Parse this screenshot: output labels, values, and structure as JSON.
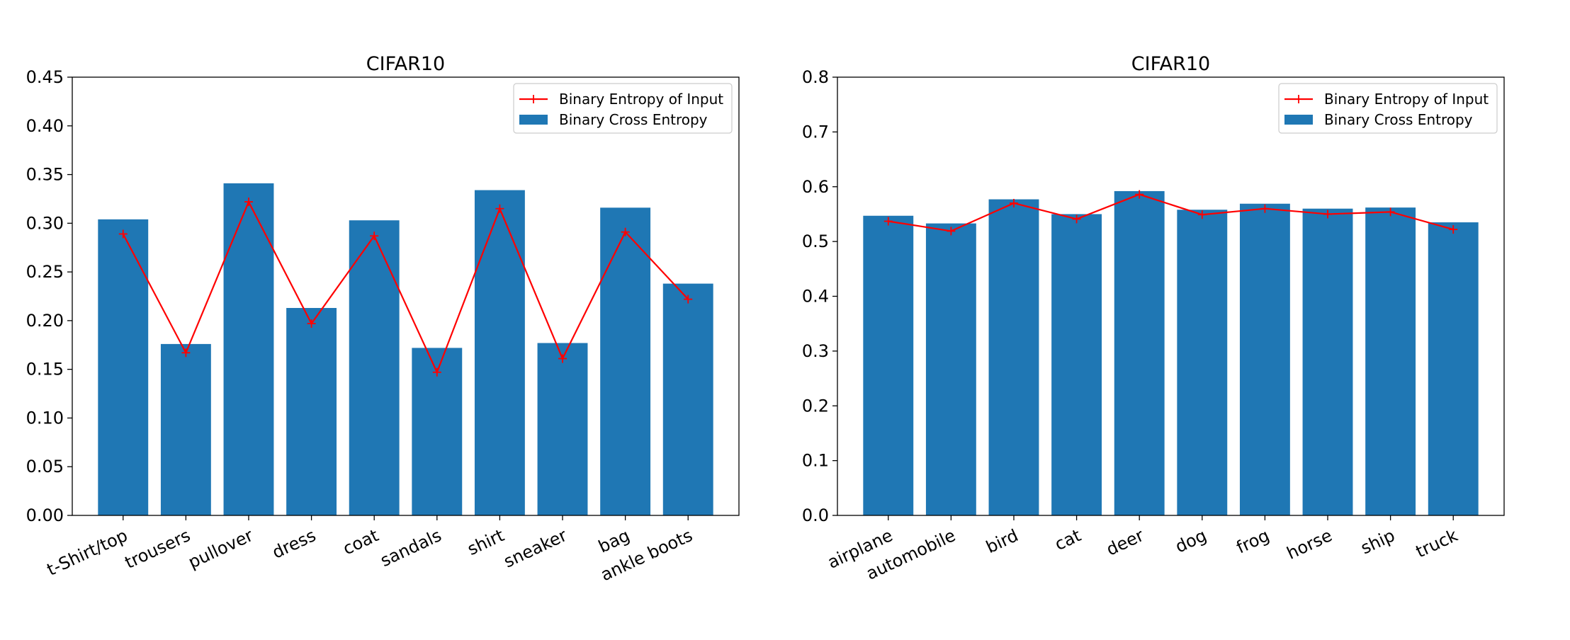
{
  "colors": {
    "bar": "#1f77b4",
    "line": "#ff0000",
    "axis": "#000000",
    "background": "#ffffff"
  },
  "chart_data": [
    {
      "type": "bar",
      "title": "CIFAR10",
      "xlabel": "",
      "ylabel": "",
      "categories": [
        "t-Shirt/top",
        "trousers",
        "pullover",
        "dress",
        "coat",
        "sandals",
        "shirt",
        "sneaker",
        "bag",
        "ankle boots"
      ],
      "ylim": [
        0,
        0.45
      ],
      "yticks": [
        "0.00",
        "0.05",
        "0.10",
        "0.15",
        "0.20",
        "0.25",
        "0.30",
        "0.35",
        "0.40",
        "0.45"
      ],
      "grid": false,
      "legend_position": "top-right",
      "series": [
        {
          "name": "Binary Entropy of Input",
          "kind": "line",
          "marker": "+",
          "color": "#ff0000",
          "values": [
            0.289,
            0.167,
            0.322,
            0.197,
            0.287,
            0.147,
            0.315,
            0.161,
            0.291,
            0.222
          ]
        },
        {
          "name": "Binary Cross Entropy",
          "kind": "bar",
          "color": "#1f77b4",
          "values": [
            0.304,
            0.176,
            0.341,
            0.213,
            0.303,
            0.172,
            0.334,
            0.177,
            0.316,
            0.238
          ]
        }
      ]
    },
    {
      "type": "bar",
      "title": "CIFAR10",
      "xlabel": "",
      "ylabel": "",
      "categories": [
        "airplane",
        "automobile",
        "bird",
        "cat",
        "deer",
        "dog",
        "frog",
        "horse",
        "ship",
        "truck"
      ],
      "ylim": [
        0,
        0.8
      ],
      "yticks": [
        "0.0",
        "0.1",
        "0.2",
        "0.3",
        "0.4",
        "0.5",
        "0.6",
        "0.7",
        "0.8"
      ],
      "grid": false,
      "legend_position": "top-right",
      "series": [
        {
          "name": "Binary Entropy of Input",
          "kind": "line",
          "marker": "+",
          "color": "#ff0000",
          "values": [
            0.537,
            0.519,
            0.57,
            0.541,
            0.586,
            0.549,
            0.56,
            0.55,
            0.554,
            0.522
          ]
        },
        {
          "name": "Binary Cross Entropy",
          "kind": "bar",
          "color": "#1f77b4",
          "values": [
            0.547,
            0.533,
            0.577,
            0.55,
            0.592,
            0.558,
            0.569,
            0.56,
            0.562,
            0.535
          ]
        }
      ]
    }
  ]
}
